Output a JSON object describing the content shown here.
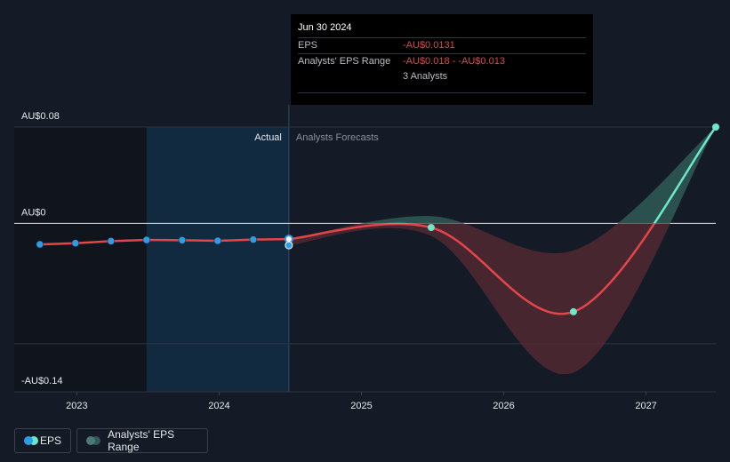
{
  "colors": {
    "background": "#151b26",
    "eps_line": "#e2454a",
    "eps_point_actual": "#2e9de6",
    "eps_point_forecast": "#6ee7c8",
    "range_negative": "#5a2b33",
    "range_positive": "#2f5a56",
    "actual_band": "#122c44"
  },
  "tooltip": {
    "date": "Jun 30 2024",
    "eps_label": "EPS",
    "eps_value": "-AU$0.0131",
    "range_label": "Analysts' EPS Range",
    "range_value": "-AU$0.018 - -AU$0.013",
    "analysts": "3 Analysts"
  },
  "legend": {
    "eps_label": "EPS",
    "range_label": "Analysts' EPS Range"
  },
  "chart_data": {
    "type": "line",
    "region_labels": {
      "actual": "Actual",
      "forecast": "Analysts Forecasts"
    },
    "x_ticks": [
      2023,
      2024,
      2025,
      2026,
      2027
    ],
    "x_range": [
      2022.56,
      2027.49
    ],
    "y_range": [
      -0.14,
      0.08
    ],
    "y_ticks": [
      {
        "value": 0.08,
        "label": "AU$0.08"
      },
      {
        "value": 0,
        "label": "AU$0"
      },
      {
        "value": -0.14,
        "label": "-AU$0.14"
      }
    ],
    "gridlines": [
      0.08,
      -0.1
    ],
    "actual_start": 2023.49,
    "actual_end": 2024.49,
    "series": [
      {
        "name": "EPS",
        "kind": "actual",
        "x": [
          2022.74,
          2022.99,
          2023.24,
          2023.49,
          2023.74,
          2023.99,
          2024.24,
          2024.49
        ],
        "y": [
          -0.0175,
          -0.0165,
          -0.0148,
          -0.0138,
          -0.014,
          -0.0145,
          -0.0135,
          -0.0131
        ]
      },
      {
        "name": "EPS",
        "kind": "forecast",
        "x": [
          2024.49,
          2025.49,
          2026.49,
          2027.49
        ],
        "y": [
          -0.0131,
          -0.0035,
          -0.0735,
          0.08
        ]
      }
    ],
    "range": {
      "x": [
        2024.49,
        2025.49,
        2026.49,
        2027.49
      ],
      "low": [
        -0.018,
        -0.0105,
        -0.124,
        0.08
      ],
      "high": [
        -0.013,
        0.006,
        -0.0225,
        0.08
      ]
    }
  }
}
